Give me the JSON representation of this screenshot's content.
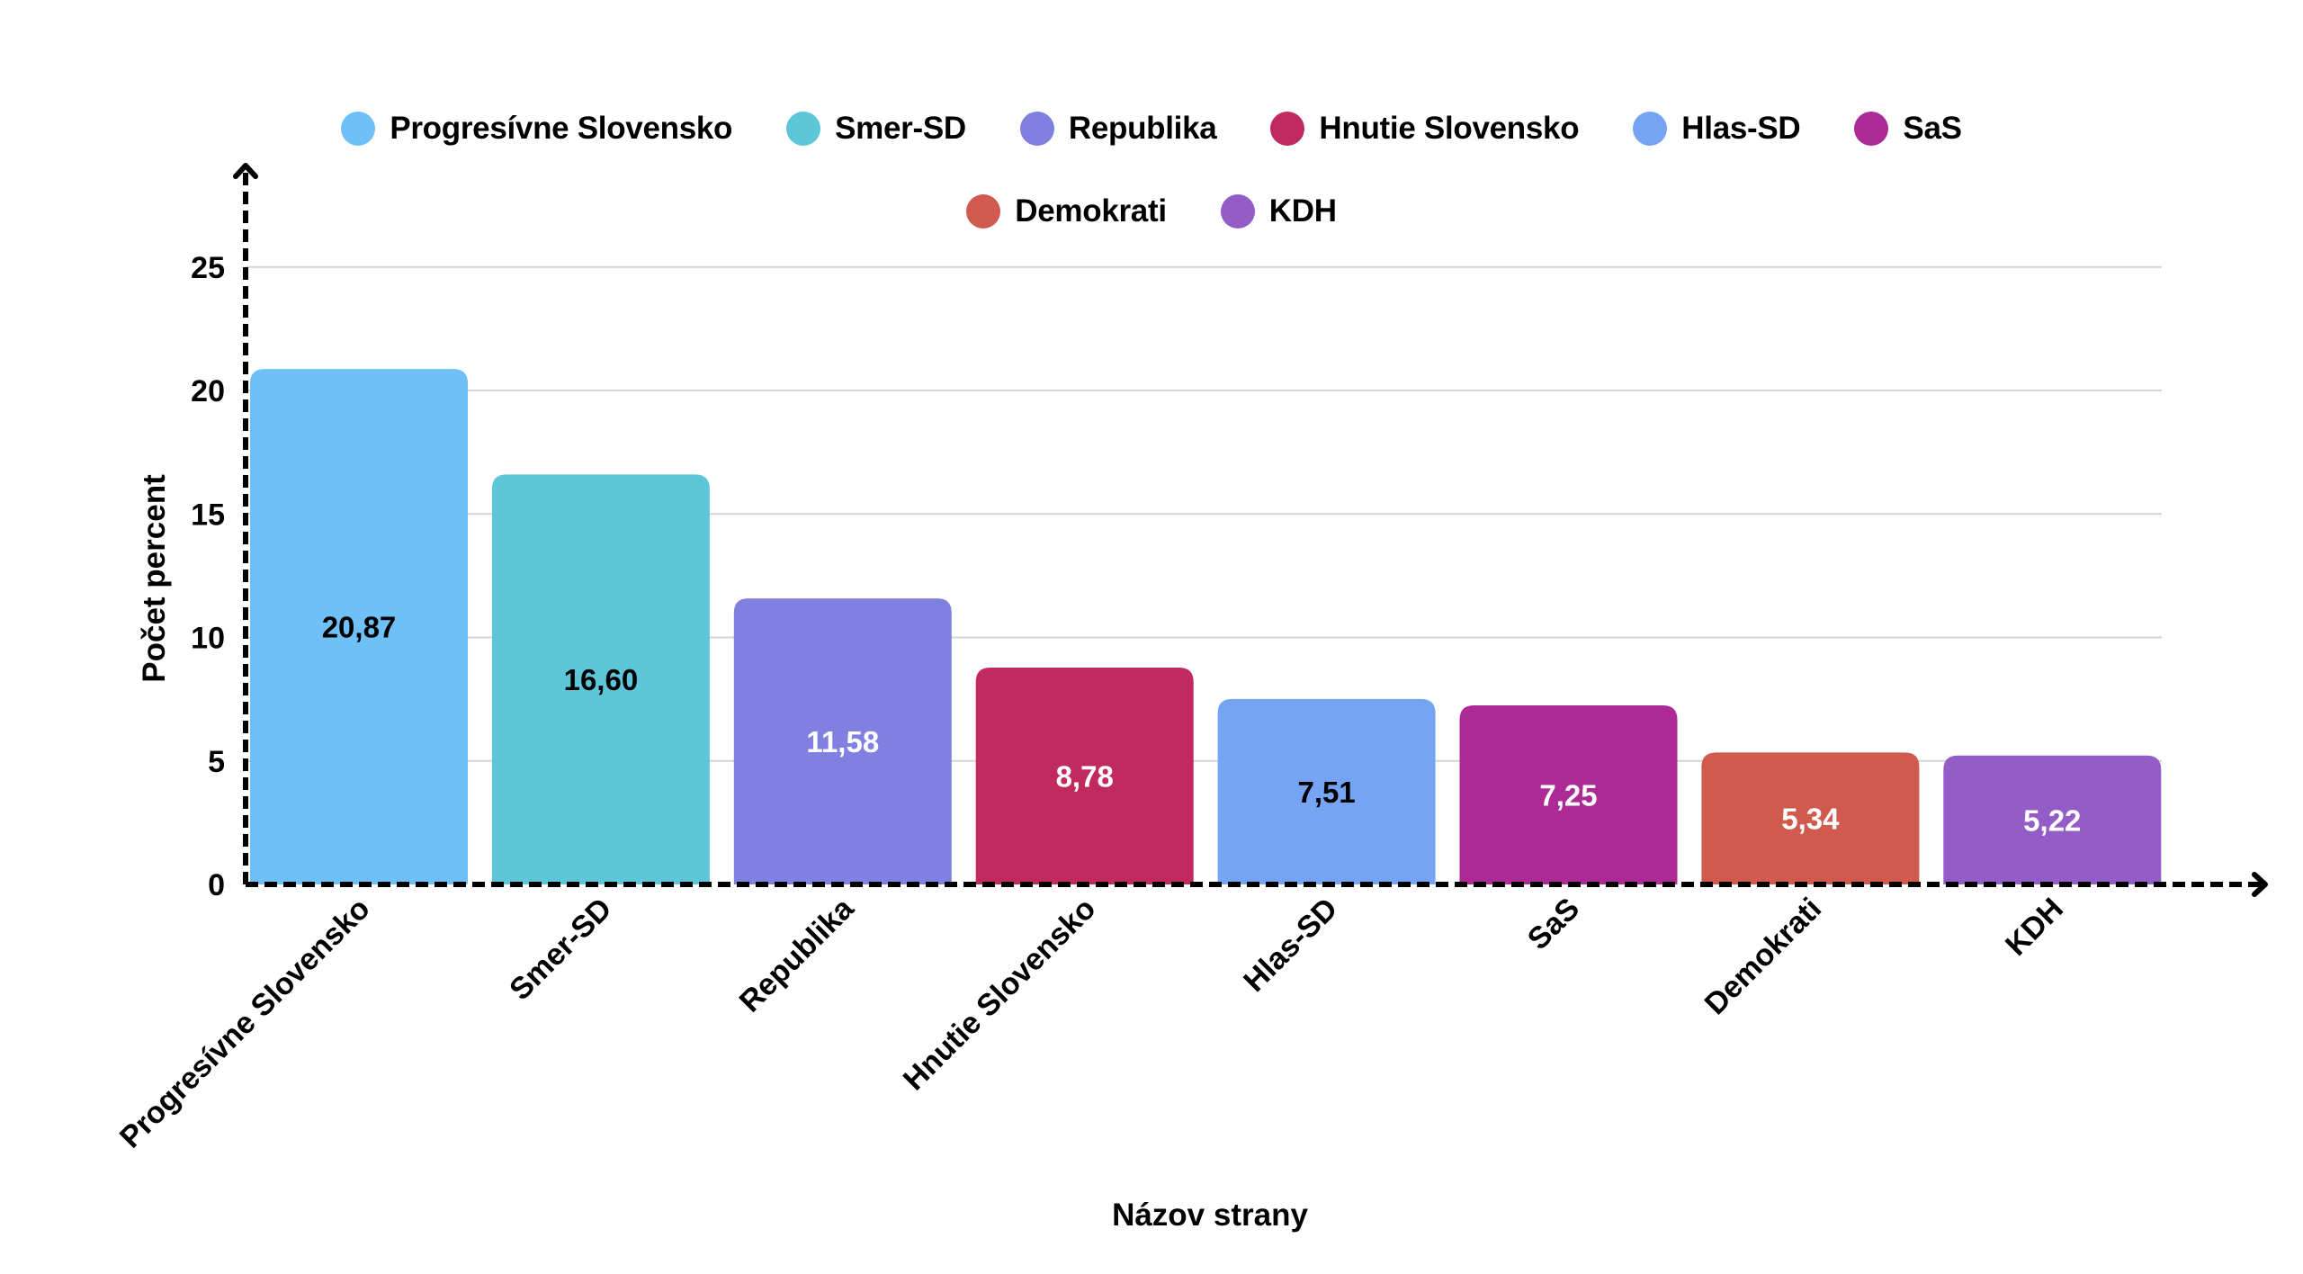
{
  "chart_data": {
    "type": "bar",
    "title": "",
    "xlabel": "Názov strany",
    "ylabel": "Počet percent",
    "ylim": [
      0,
      25
    ],
    "yticks": [
      "0",
      "5",
      "10",
      "15",
      "20",
      "25"
    ],
    "grid": true,
    "legend_position": "top",
    "categories": [
      "Progresívne Slovensko",
      "Smer-SD",
      "Republika",
      "Hnutie Slovensko",
      "Hlas-SD",
      "SaS",
      "Demokrati",
      "KDH"
    ],
    "values": [
      20.87,
      16.6,
      11.58,
      8.78,
      7.51,
      7.25,
      5.34,
      5.22
    ],
    "value_labels": [
      "20,87",
      "16,60",
      "11,58",
      "8,78",
      "7,51",
      "7,25",
      "5,34",
      "5,22"
    ],
    "colors": [
      "#6ec0f6",
      "#5dc7d9",
      "#8080e0",
      "#c02a5e",
      "#75a5f2",
      "#ac2996",
      "#d05a4e",
      "#945cc6"
    ],
    "label_colors": [
      "#000000",
      "#000000",
      "#ffffff",
      "#ffffff",
      "#000000",
      "#ffffff",
      "#ffffff",
      "#ffffff"
    ],
    "legend": [
      {
        "label": "Progresívne Slovensko",
        "color": "#6ec0f6"
      },
      {
        "label": "Smer-SD",
        "color": "#5dc7d9"
      },
      {
        "label": "Republika",
        "color": "#8080e0"
      },
      {
        "label": "Hnutie Slovensko",
        "color": "#c02a5e"
      },
      {
        "label": "Hlas-SD",
        "color": "#75a5f2"
      },
      {
        "label": "SaS",
        "color": "#ac2996"
      },
      {
        "label": "Demokrati",
        "color": "#d05a4e"
      },
      {
        "label": "KDH",
        "color": "#945cc6"
      }
    ]
  }
}
